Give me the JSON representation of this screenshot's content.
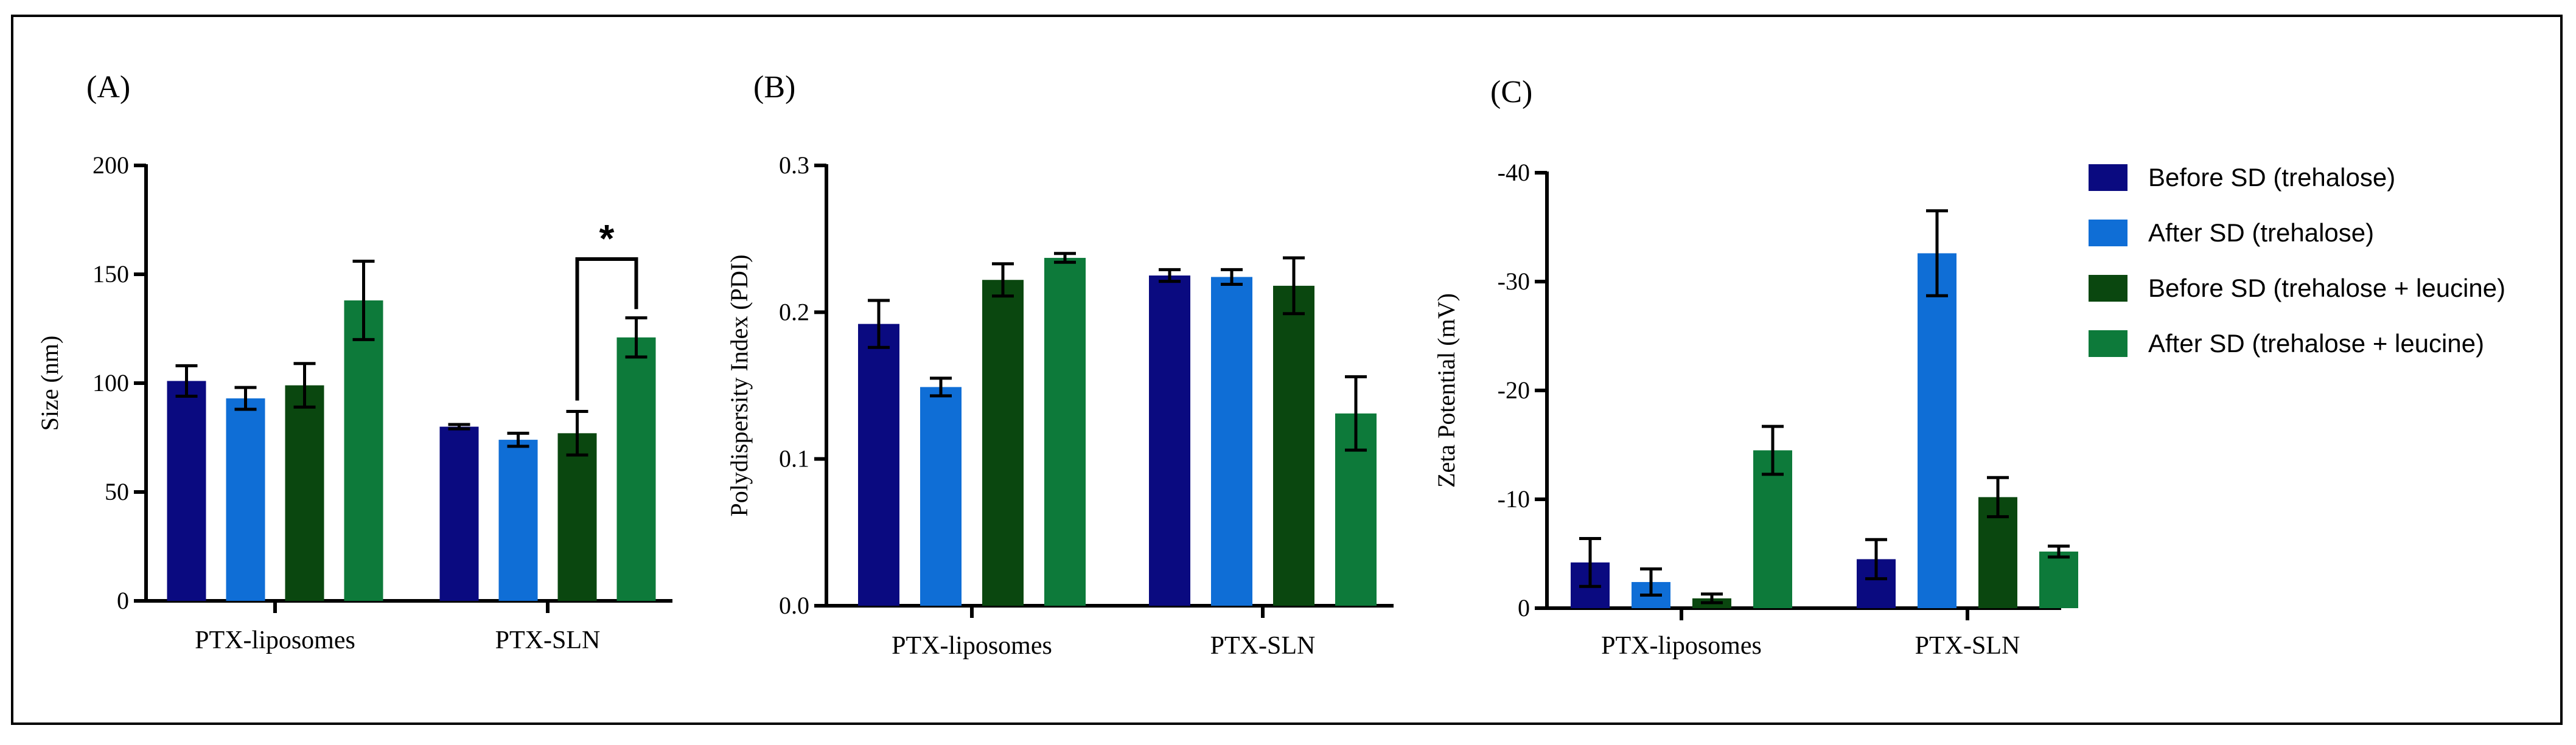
{
  "figure": {
    "series_colors": [
      "#0a0a80",
      "#0f6ed6",
      "#0a470f",
      "#0d7a3a"
    ],
    "legend": [
      "Before SD (trehalose)",
      "After SD (trehalose)",
      "Before SD (trehalose + leucine)",
      "After SD (trehalose + leucine)"
    ]
  },
  "chart_data": [
    {
      "type": "bar",
      "panel_label": "(A)",
      "title": "",
      "ylabel": "Size (nm)",
      "xlabel": "",
      "ylim": [
        0,
        200
      ],
      "yticks": [
        0,
        50,
        100,
        150,
        200
      ],
      "ytick_labels": [
        "0",
        "50",
        "100",
        "150",
        "200"
      ],
      "categories": [
        "PTX-liposomes",
        "PTX-SLN"
      ],
      "series": [
        {
          "name": "Before SD (trehalose)",
          "values": [
            101,
            80
          ],
          "errors": [
            7,
            1
          ]
        },
        {
          "name": "After SD (trehalose)",
          "values": [
            93,
            74
          ],
          "errors": [
            5,
            3
          ]
        },
        {
          "name": "Before SD (trehalose + leucine)",
          "values": [
            99,
            77
          ],
          "errors": [
            10,
            10
          ]
        },
        {
          "name": "After SD (trehalose + leucine)",
          "values": [
            138,
            121
          ],
          "errors": [
            18,
            9
          ]
        }
      ],
      "annotations": [
        {
          "text": "*",
          "category": "PTX-SLN",
          "from_series": 2,
          "to_series": 3,
          "y": 157
        }
      ]
    },
    {
      "type": "bar",
      "panel_label": "(B)",
      "title": "",
      "ylabel": "Polydispersity Index (PDI)",
      "xlabel": "",
      "ylim": [
        0,
        0.3
      ],
      "yticks": [
        0,
        0.1,
        0.2,
        0.3
      ],
      "ytick_labels": [
        "0.0",
        "0.1",
        "0.2",
        "0.3"
      ],
      "categories": [
        "PTX-liposomes",
        "PTX-SLN"
      ],
      "series": [
        {
          "name": "Before SD (trehalose)",
          "values": [
            0.192,
            0.225
          ],
          "errors": [
            0.016,
            0.004
          ]
        },
        {
          "name": "After SD (trehalose)",
          "values": [
            0.149,
            0.224
          ],
          "errors": [
            0.006,
            0.005
          ]
        },
        {
          "name": "Before SD (trehalose + leucine)",
          "values": [
            0.222,
            0.218
          ],
          "errors": [
            0.011,
            0.019
          ]
        },
        {
          "name": "After SD (trehalose + leucine)",
          "values": [
            0.237,
            0.131
          ],
          "errors": [
            0.003,
            0.025
          ]
        }
      ],
      "annotations": []
    },
    {
      "type": "bar",
      "panel_label": "(C)",
      "title": "",
      "ylabel": "Zeta Potential (mV)",
      "xlabel": "",
      "ylim": [
        0,
        -40
      ],
      "yticks": [
        0,
        -10,
        -20,
        -30,
        -40
      ],
      "ytick_labels": [
        "0",
        "-10",
        "-20",
        "-30",
        "-40"
      ],
      "categories": [
        "PTX-liposomes",
        "PTX-SLN"
      ],
      "series": [
        {
          "name": "Before SD (trehalose)",
          "values": [
            -4.2,
            -4.5
          ],
          "errors": [
            2.2,
            1.8
          ]
        },
        {
          "name": "After SD (trehalose)",
          "values": [
            -2.4,
            -32.6
          ],
          "errors": [
            1.2,
            3.9
          ]
        },
        {
          "name": "Before SD (trehalose + leucine)",
          "values": [
            -0.9,
            -10.2
          ],
          "errors": [
            0.4,
            1.8
          ]
        },
        {
          "name": "After SD (trehalose + leucine)",
          "values": [
            -14.5,
            -5.2
          ],
          "errors": [
            2.2,
            0.5
          ]
        }
      ],
      "annotations": []
    }
  ]
}
